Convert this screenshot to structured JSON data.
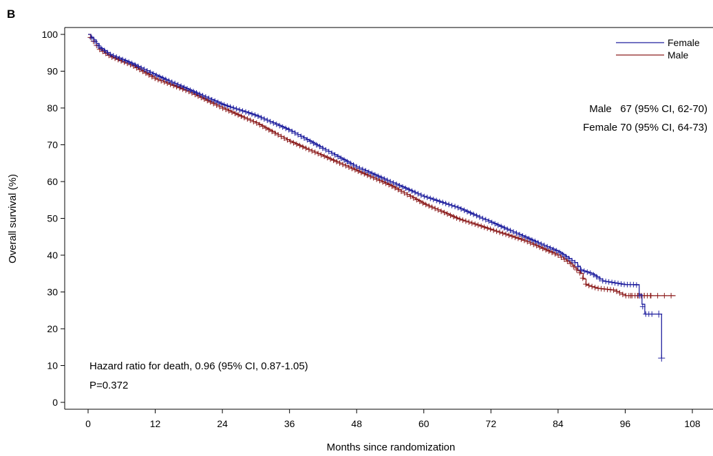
{
  "panel_label": "B",
  "chart_data": {
    "type": "line",
    "xlabel": "Months since randomization",
    "ylabel": "Overall survival (%)",
    "xlim": [
      0,
      108
    ],
    "ylim": [
      0,
      100
    ],
    "xticks": [
      0,
      12,
      24,
      36,
      48,
      60,
      72,
      84,
      96,
      108
    ],
    "yticks": [
      0,
      10,
      20,
      30,
      40,
      50,
      60,
      70,
      80,
      90,
      100
    ],
    "legend_position": "top-right",
    "series": [
      {
        "name": "Female",
        "color": "#1f1f9e",
        "step_points": [
          [
            0,
            100
          ],
          [
            1,
            98.5
          ],
          [
            2,
            96.5
          ],
          [
            4,
            94.5
          ],
          [
            8,
            92
          ],
          [
            12,
            89
          ],
          [
            18,
            85
          ],
          [
            24,
            81
          ],
          [
            30,
            78
          ],
          [
            36,
            74
          ],
          [
            42,
            69
          ],
          [
            48,
            64
          ],
          [
            54,
            60
          ],
          [
            60,
            56
          ],
          [
            66,
            53
          ],
          [
            72,
            49
          ],
          [
            78,
            45
          ],
          [
            84,
            41
          ],
          [
            87,
            38
          ],
          [
            88,
            36
          ],
          [
            90,
            35
          ],
          [
            92,
            33
          ],
          [
            96,
            32
          ],
          [
            98,
            32
          ],
          [
            99.5,
            24
          ],
          [
            102,
            24
          ],
          [
            102.5,
            12
          ]
        ]
      },
      {
        "name": "Male",
        "color": "#8b1a1a",
        "step_points": [
          [
            0,
            100
          ],
          [
            1,
            98
          ],
          [
            2,
            96
          ],
          [
            4,
            94
          ],
          [
            8,
            91.5
          ],
          [
            12,
            88
          ],
          [
            18,
            84.5
          ],
          [
            24,
            80
          ],
          [
            30,
            76
          ],
          [
            36,
            71
          ],
          [
            42,
            67
          ],
          [
            48,
            63
          ],
          [
            54,
            59
          ],
          [
            60,
            54
          ],
          [
            66,
            50
          ],
          [
            72,
            47
          ],
          [
            78,
            44
          ],
          [
            84,
            40
          ],
          [
            86,
            38
          ],
          [
            88,
            35
          ],
          [
            89,
            32
          ],
          [
            91,
            31
          ],
          [
            94,
            30.5
          ],
          [
            96,
            29
          ],
          [
            105,
            29
          ]
        ]
      }
    ],
    "annotations": {
      "median_male": "Male   67 (95% CI, 62-70)",
      "median_female": "Female 70 (95% CI, 64-73)",
      "hazard_ratio": "Hazard ratio for death, 0.96 (95% CI, 0.87-1.05)",
      "p_value": "P=0.372"
    }
  }
}
